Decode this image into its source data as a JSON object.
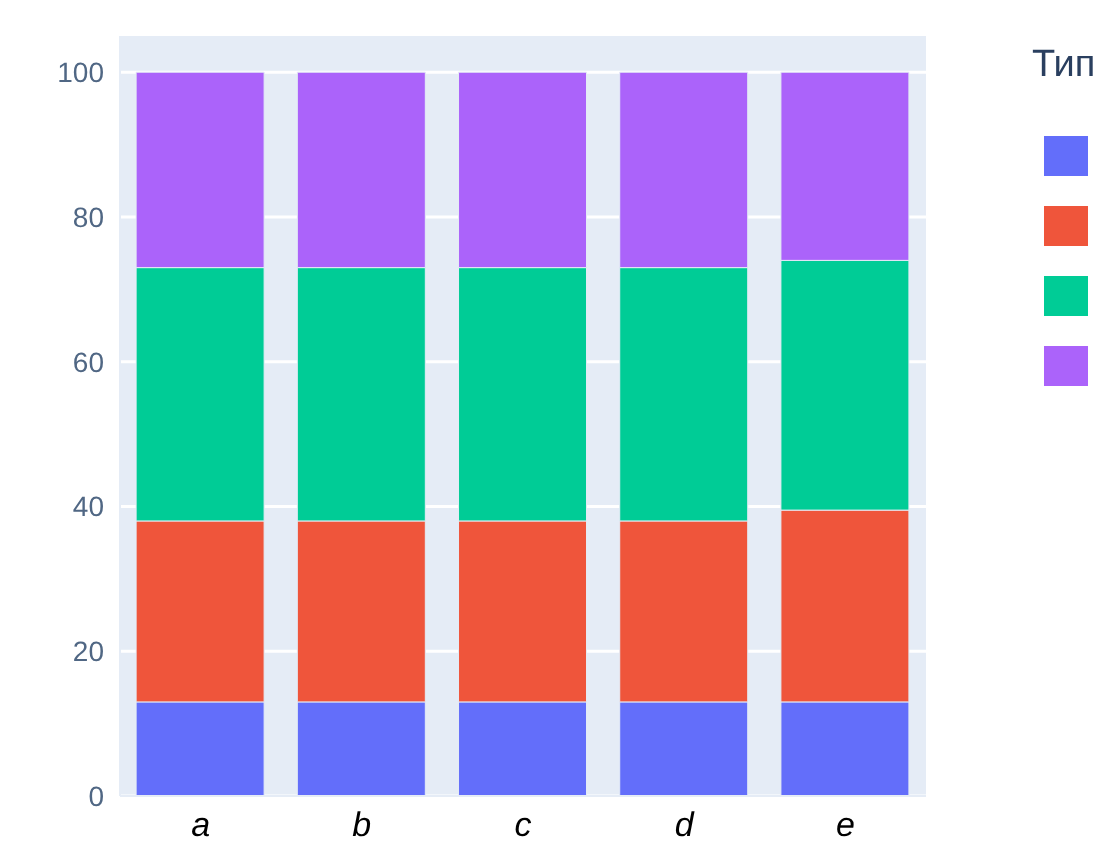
{
  "chart_data": {
    "type": "bar",
    "stacked": true,
    "legend_title": "Тип",
    "grid": "y",
    "categories": [
      "a",
      "b",
      "c",
      "d",
      "e"
    ],
    "series": [
      {
        "color": "#636efa",
        "values": [
          13,
          13,
          13,
          13,
          13
        ]
      },
      {
        "color": "#ef553b",
        "values": [
          25,
          25,
          25,
          25,
          26.5
        ]
      },
      {
        "color": "#00cc96",
        "values": [
          35,
          35,
          35,
          35,
          34.5
        ]
      },
      {
        "color": "#ab63fa",
        "values": [
          27,
          27,
          27,
          27,
          26
        ]
      }
    ],
    "ylim": [
      0,
      105
    ],
    "yticks": [
      0,
      20,
      40,
      60,
      80,
      100
    ]
  }
}
